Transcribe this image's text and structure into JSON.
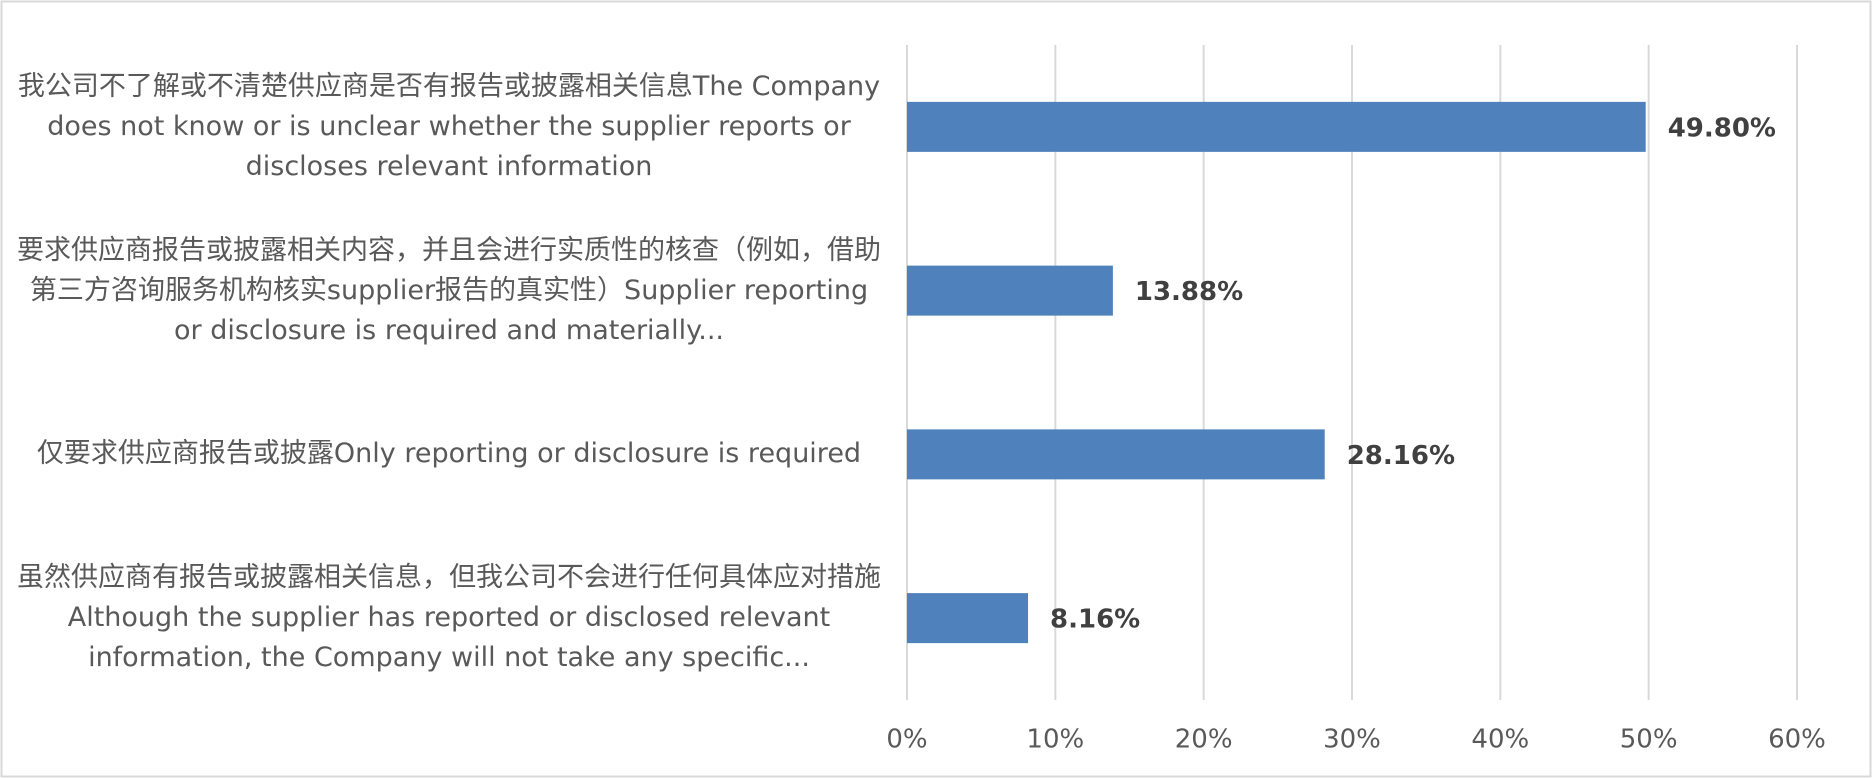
{
  "chart_data": {
    "type": "barh",
    "categories": [
      "我公司不了解或不清楚供应商是否有报告或披露相关信息The Company does not know or is unclear whether the supplier reports or discloses relevant information",
      "要求供应商报告或披露相关内容，并且会进行实质性的核查（例如，借助第三方咨询服务机构核实supplier报告的真实性）Supplier reporting or disclosure is required and materially...",
      "仅要求供应商报告或披露Only reporting or disclosure is required",
      "虽然供应商有报告或披露相关信息，但我公司不会进行任何具体应对措施Although the supplier has reported or disclosed relevant information, the Company will not take any specific..."
    ],
    "values": [
      49.8,
      13.88,
      28.16,
      8.16
    ],
    "value_labels": [
      "49.80%",
      "13.88%",
      "28.16%",
      "8.16%"
    ],
    "color": "#4f81bd",
    "xlim": [
      0,
      60
    ],
    "xticks": [
      {
        "value": 0,
        "label": "0%"
      },
      {
        "value": 10,
        "label": "10%"
      },
      {
        "value": 20,
        "label": "20%"
      },
      {
        "value": 30,
        "label": "30%"
      },
      {
        "value": 40,
        "label": "40%"
      },
      {
        "value": 50,
        "label": "50%"
      },
      {
        "value": 60,
        "label": "60%"
      }
    ],
    "grid": true
  }
}
